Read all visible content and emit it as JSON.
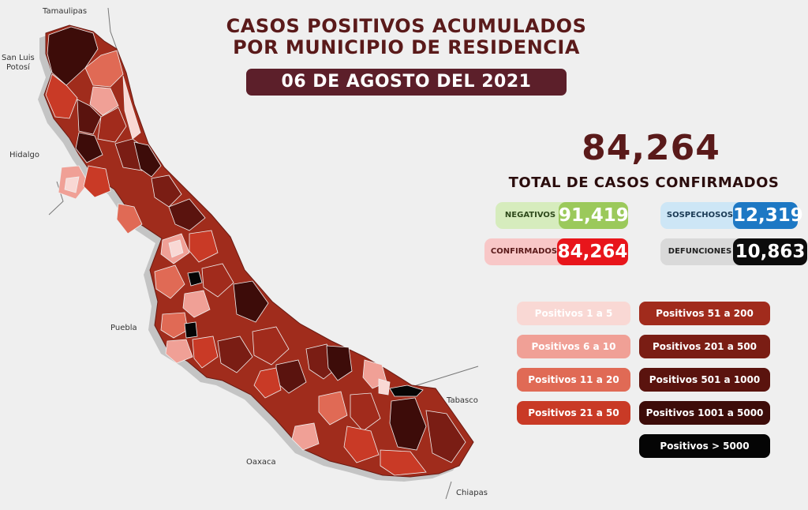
{
  "header": {
    "title_line1": "CASOS POSITIVOS ACUMULADOS",
    "title_line2": "POR MUNICIPIO DE RESIDENCIA",
    "date": "06 DE AGOSTO DEL 2021"
  },
  "totals": {
    "total_number": "84,264",
    "total_label": "TOTAL DE CASOS CONFIRMADOS"
  },
  "stats": {
    "negativos": {
      "label": "NEGATIVOS",
      "value": "91,419"
    },
    "sospechosos": {
      "label": "SOSPECHOSOS",
      "value": "12,319"
    },
    "confirmados": {
      "label": "CONFIRMADOS",
      "value": "84,264"
    },
    "defunciones": {
      "label": "DEFUNCIONES",
      "value": "10,863"
    }
  },
  "legend": [
    {
      "label": "Positivos 1 a 5",
      "color": "#f9d8d4",
      "text_color": "#ffffff"
    },
    {
      "label": "Positivos 6 a 10",
      "color": "#f0a096",
      "text_color": "#ffffff"
    },
    {
      "label": "Positivos 11 a 20",
      "color": "#e06a55",
      "text_color": "#ffffff"
    },
    {
      "label": "Positivos 21 a 50",
      "color": "#c93a26",
      "text_color": "#ffffff"
    },
    {
      "label": "Positivos 51 a 200",
      "color": "#a12b1c",
      "text_color": "#ffffff"
    },
    {
      "label": "Positivos 201 a 500",
      "color": "#7a1d14",
      "text_color": "#ffffff"
    },
    {
      "label": "Positivos 501 a 1000",
      "color": "#5a130e",
      "text_color": "#ffffff"
    },
    {
      "label": "Positivos 1001 a 5000",
      "color": "#3d0c09",
      "text_color": "#ffffff"
    },
    {
      "label": "Positivos > 5000",
      "color": "#050505",
      "text_color": "#ffffff"
    }
  ],
  "neighbors": {
    "tamaulipas": "Tamaulipas",
    "san_luis_1": "San Luis",
    "san_luis_2": "Potosí",
    "hidalgo": "Hidalgo",
    "puebla": "Puebla",
    "oaxaca": "Oaxaca",
    "tabasco": "Tabasco",
    "chiapas": "Chiapas"
  }
}
